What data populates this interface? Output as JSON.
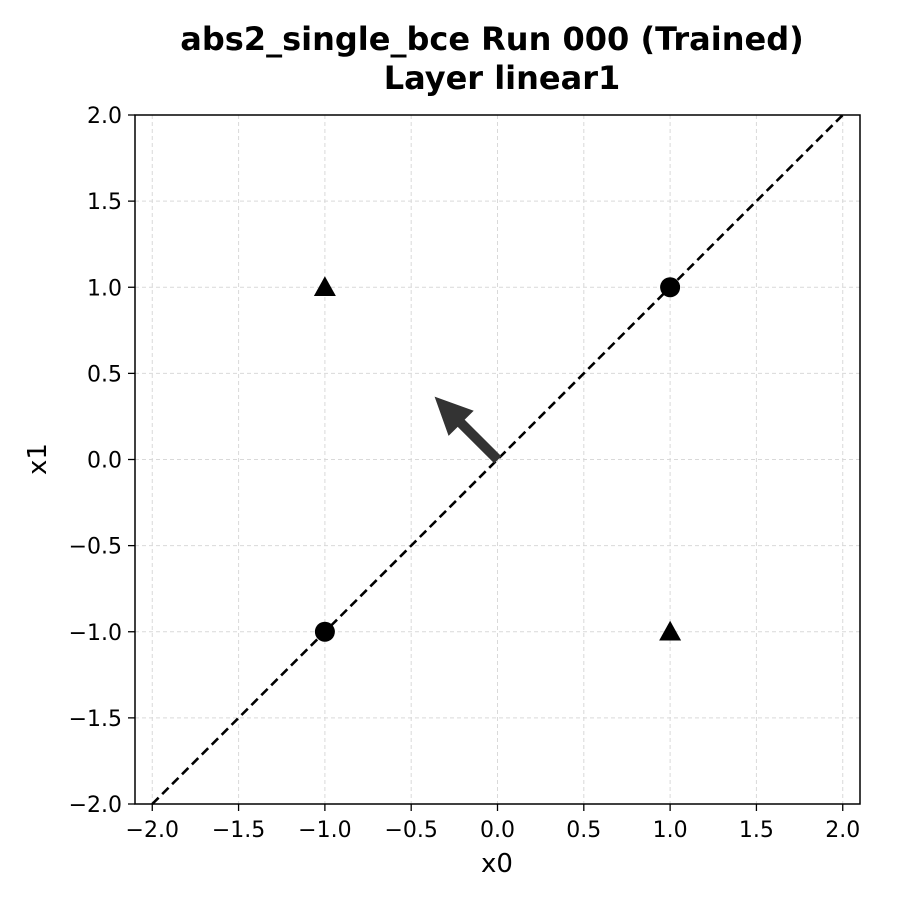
{
  "chart_data": {
    "type": "scatter",
    "title": "abs2_single_bce Run 000 (Trained)",
    "subtitle": "Layer linear1",
    "xlabel": "x0",
    "ylabel": "x1",
    "xlim": [
      -2.1,
      2.1
    ],
    "ylim": [
      -2.0,
      2.0
    ],
    "x_ticks": [
      -2.0,
      -1.5,
      -1.0,
      -0.5,
      0.0,
      0.5,
      1.0,
      1.5,
      2.0
    ],
    "y_ticks": [
      -2.0,
      -1.5,
      -1.0,
      -0.5,
      0.0,
      0.5,
      1.0,
      1.5,
      2.0
    ],
    "x_tick_labels": [
      "−2.0",
      "−1.5",
      "−1.0",
      "−0.5",
      "0.0",
      "0.5",
      "1.0",
      "1.5",
      "2.0"
    ],
    "y_tick_labels": [
      "−2.0",
      "−1.5",
      "−1.0",
      "−0.5",
      "0.0",
      "0.5",
      "1.0",
      "1.5",
      "2.0"
    ],
    "grid": true,
    "points": [
      {
        "x": -1.0,
        "y": -1.0,
        "marker": "circle"
      },
      {
        "x": 1.0,
        "y": 1.0,
        "marker": "circle"
      },
      {
        "x": -1.0,
        "y": 1.0,
        "marker": "triangle"
      },
      {
        "x": 1.0,
        "y": -1.0,
        "marker": "triangle"
      }
    ],
    "decision_boundary": {
      "x": [
        -2.0,
        2.0
      ],
      "y": [
        -2.0,
        2.0
      ],
      "style": "dashed"
    },
    "weight_arrow": {
      "from": [
        0.0,
        0.0
      ],
      "to": [
        -0.36,
        0.36
      ]
    },
    "colors": {
      "points": "#000000",
      "boundary": "#000000",
      "arrow": "#333333",
      "grid": "#d9d9d9"
    }
  }
}
